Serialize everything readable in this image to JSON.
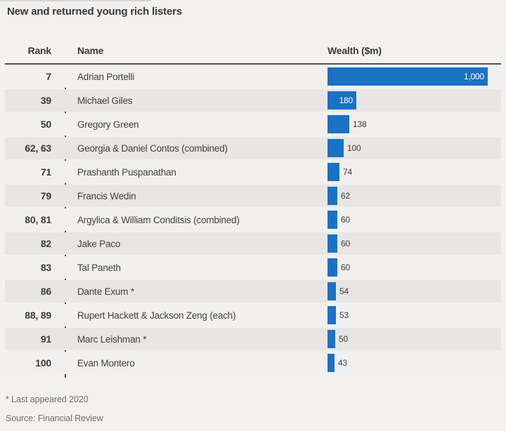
{
  "title": "New and returned young rich listers",
  "columns": {
    "rank": "Rank",
    "name": "Name",
    "wealth": "Wealth ($m)"
  },
  "rows": [
    {
      "rank": "7",
      "name": "Adrian Portelli",
      "value": 1000,
      "value_label": "1,000"
    },
    {
      "rank": "39",
      "name": "Michael Giles",
      "value": 180,
      "value_label": "180"
    },
    {
      "rank": "50",
      "name": "Gregory Green",
      "value": 138,
      "value_label": "138"
    },
    {
      "rank": "62, 63",
      "name": "Georgia & Daniel Contos (combined)",
      "value": 100,
      "value_label": "100"
    },
    {
      "rank": "71",
      "name": "Prashanth Puspanathan",
      "value": 74,
      "value_label": "74"
    },
    {
      "rank": "79",
      "name": "Francis Wedin",
      "value": 62,
      "value_label": "62"
    },
    {
      "rank": "80, 81",
      "name": "Argylica & William Conditsis (combined)",
      "value": 60,
      "value_label": "60"
    },
    {
      "rank": "82",
      "name": "Jake Paco",
      "value": 60,
      "value_label": "60"
    },
    {
      "rank": "83",
      "name": "Tal Paneth",
      "value": 60,
      "value_label": "60"
    },
    {
      "rank": "86",
      "name": "Dante Exum *",
      "value": 54,
      "value_label": "54"
    },
    {
      "rank": "88, 89",
      "name": "Rupert Hackett & Jackson Zeng (each)",
      "value": 53,
      "value_label": "53"
    },
    {
      "rank": "91",
      "name": "Marc Leishman *",
      "value": 50,
      "value_label": "50"
    },
    {
      "rank": "100",
      "name": "Evan Montero",
      "value": 43,
      "value_label": "43"
    }
  ],
  "footnotes": {
    "asterisk": "* Last appeared 2020",
    "source": "Source: Financial Review"
  },
  "colors": {
    "bar": "#1a72c5",
    "row_light": "#f1f0ee",
    "row_dark": "#e8e6e4",
    "header_rule": "#4f4f4f",
    "text_dark": "#3c3c3c",
    "text_muted": "#6e6e6e"
  },
  "chart_data": {
    "type": "bar",
    "orientation": "horizontal",
    "title": "New and returned young rich listers",
    "categories": [
      "Adrian Portelli",
      "Michael Giles",
      "Gregory Green",
      "Georgia & Daniel Contos (combined)",
      "Prashanth Puspanathan",
      "Francis Wedin",
      "Argylica & William Conditsis (combined)",
      "Jake Paco",
      "Tal Paneth",
      "Dante Exum *",
      "Rupert Hackett & Jackson Zeng (each)",
      "Marc Leishman *",
      "Evan Montero"
    ],
    "ranks": [
      "7",
      "39",
      "50",
      "62, 63",
      "71",
      "79",
      "80, 81",
      "82",
      "83",
      "86",
      "88, 89",
      "91",
      "100"
    ],
    "values": [
      1000,
      180,
      138,
      100,
      74,
      62,
      60,
      60,
      60,
      54,
      53,
      50,
      43
    ],
    "xlabel": "Wealth ($m)",
    "xlim": [
      0,
      1000
    ],
    "grid": false,
    "legend": false,
    "bar_color": "#1a72c5",
    "data_labels": true,
    "footnote": "* Last appeared 2020",
    "source": "Source: Financial Review"
  }
}
